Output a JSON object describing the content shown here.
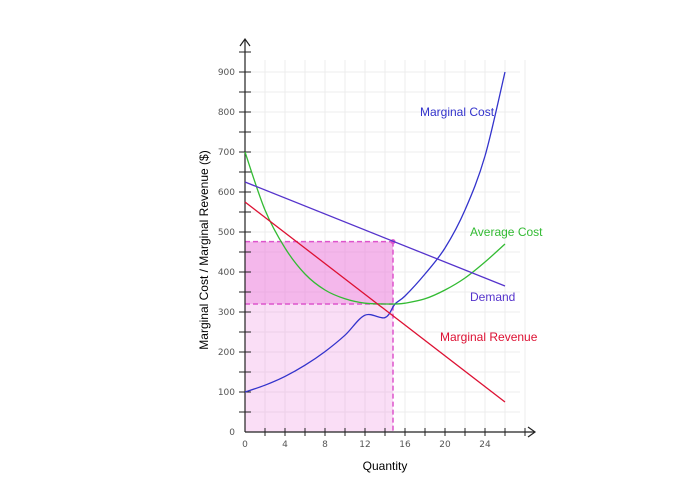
{
  "chart_data": {
    "type": "line",
    "xlabel": "Quantity",
    "ylabel": "Marginal Cost / Marginal Revenue ($)",
    "xlim": [
      0,
      29
    ],
    "ylim": [
      0,
      970
    ],
    "x_ticks": [
      0,
      4,
      8,
      12,
      16,
      20,
      24
    ],
    "y_ticks": [
      0,
      100,
      200,
      300,
      400,
      500,
      600,
      700,
      800,
      900
    ],
    "grid": true,
    "series": [
      {
        "name": "Marginal Cost",
        "color": "#3333cc",
        "x": [
          0,
          2,
          4,
          6,
          8,
          10,
          12,
          14,
          15,
          16,
          18,
          20,
          22,
          24,
          26
        ],
        "y": [
          100,
          117,
          139,
          167,
          201,
          242,
          292,
          286,
          320,
          340,
          395,
          460,
          555,
          690,
          900
        ]
      },
      {
        "name": "Average Cost",
        "color": "#33bb33",
        "x": [
          0,
          2,
          4,
          6,
          8,
          10,
          12,
          14,
          15,
          16,
          18,
          20,
          22,
          24,
          26
        ],
        "y": [
          700,
          555,
          460,
          395,
          355,
          333,
          322,
          320,
          320,
          322,
          333,
          355,
          385,
          425,
          470
        ]
      },
      {
        "name": "Demand",
        "color": "#5533cc",
        "x": [
          0,
          26
        ],
        "y": [
          625,
          365
        ]
      },
      {
        "name": "Marginal Revenue",
        "color": "#dd1133",
        "x": [
          0,
          26
        ],
        "y": [
          575,
          75
        ]
      }
    ],
    "annotations": {
      "quantity": 14.8,
      "price": 476,
      "average_cost": 320,
      "region_color": "#ee88dd"
    }
  }
}
